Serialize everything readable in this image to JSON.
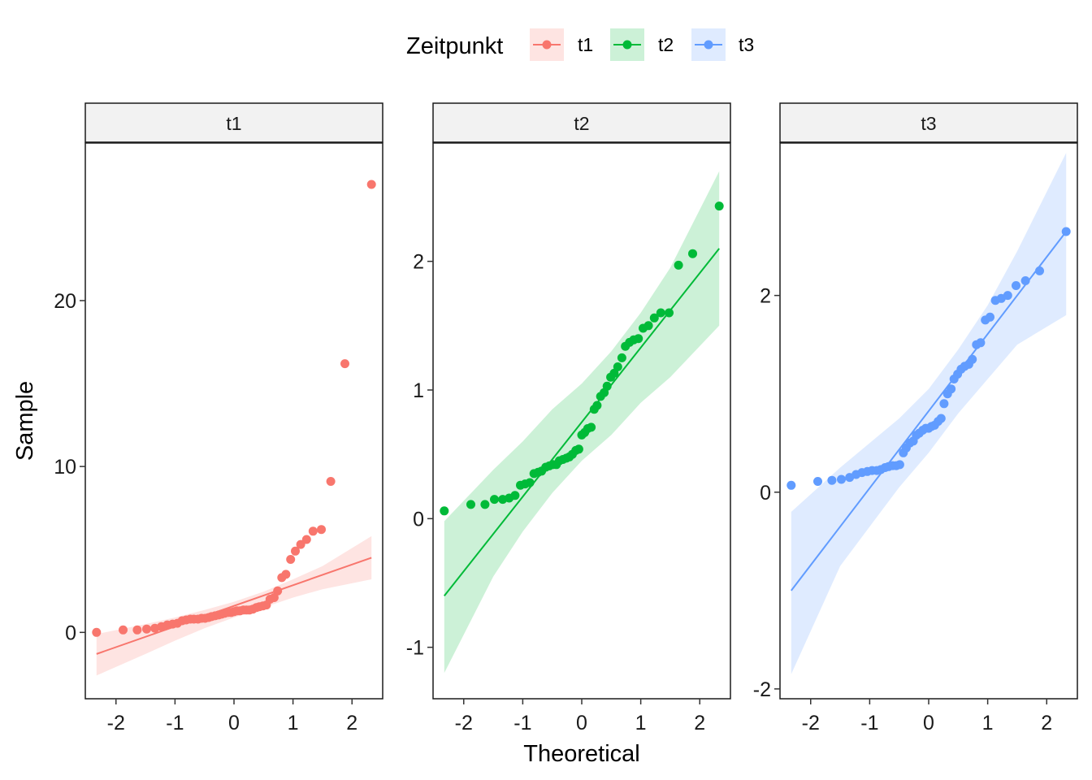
{
  "chart_data": {
    "type": "scatter",
    "subtype": "qq-plot with reference line and confidence band",
    "xlabel": "Theoretical",
    "ylabel": "Sample",
    "legend": {
      "title": "Zeitpunkt",
      "position": "top",
      "entries": [
        "t1",
        "t2",
        "t3"
      ]
    },
    "colors": {
      "t1": "#F8766D",
      "t2": "#00BA38",
      "t3": "#619CFF"
    },
    "grid": false,
    "x_ticks": [
      "-2",
      "-1",
      "0",
      "1",
      "2"
    ],
    "x_tick_values": [
      -2,
      -1,
      0,
      1,
      2
    ],
    "panels": [
      {
        "strip": "t1",
        "xlim": [
          -2.52,
          2.52
        ],
        "ylim": [
          -4.0,
          29.5
        ],
        "y_ticks": [
          "0",
          "10",
          "20"
        ],
        "y_tick_values": [
          0,
          10,
          20
        ],
        "line": {
          "x": [
            -2.33,
            2.33
          ],
          "y": [
            -1.3,
            4.5
          ]
        },
        "band": {
          "x": [
            -2.33,
            -1.5,
            -1.0,
            -0.5,
            0.0,
            0.5,
            1.0,
            1.5,
            2.33
          ],
          "lower": [
            -2.6,
            -1.3,
            -0.5,
            0.25,
            0.9,
            1.5,
            2.1,
            2.6,
            3.2
          ],
          "upper": [
            -0.1,
            0.5,
            0.9,
            1.35,
            1.85,
            2.45,
            3.2,
            4.0,
            5.8
          ]
        },
        "points": {
          "x": [
            -2.33,
            -1.88,
            -1.64,
            -1.48,
            -1.34,
            -1.23,
            -1.13,
            -1.04,
            -0.96,
            -0.88,
            -0.81,
            -0.74,
            -0.68,
            -0.61,
            -0.55,
            -0.49,
            -0.43,
            -0.38,
            -0.32,
            -0.26,
            -0.21,
            -0.16,
            -0.1,
            -0.05,
            0.0,
            0.05,
            0.1,
            0.16,
            0.21,
            0.26,
            0.32,
            0.38,
            0.43,
            0.49,
            0.55,
            0.61,
            0.68,
            0.74,
            0.81,
            0.88,
            0.96,
            1.04,
            1.13,
            1.23,
            1.34,
            1.48,
            1.64,
            1.88,
            2.33
          ],
          "y": [
            0.0,
            0.15,
            0.15,
            0.2,
            0.25,
            0.35,
            0.45,
            0.5,
            0.55,
            0.7,
            0.75,
            0.8,
            0.8,
            0.8,
            0.85,
            0.85,
            0.9,
            0.95,
            1.0,
            1.05,
            1.1,
            1.15,
            1.2,
            1.2,
            1.25,
            1.3,
            1.3,
            1.35,
            1.35,
            1.35,
            1.4,
            1.5,
            1.55,
            1.6,
            1.65,
            2.0,
            2.1,
            2.5,
            3.3,
            3.5,
            4.4,
            4.9,
            5.3,
            5.6,
            6.1,
            6.2,
            9.1,
            16.2,
            27.0
          ]
        }
      },
      {
        "strip": "t2",
        "xlim": [
          -2.52,
          2.52
        ],
        "ylim": [
          -1.4,
          2.92
        ],
        "y_ticks": [
          "-1",
          "0",
          "1",
          "2"
        ],
        "y_tick_values": [
          -1,
          0,
          1,
          2
        ],
        "line": {
          "x": [
            -2.33,
            2.33
          ],
          "y": [
            -0.6,
            2.1
          ]
        },
        "band": {
          "x": [
            -2.33,
            -1.5,
            -1.0,
            -0.5,
            0.0,
            0.5,
            1.0,
            1.5,
            2.33
          ],
          "lower": [
            -1.2,
            -0.45,
            -0.1,
            0.2,
            0.45,
            0.65,
            0.9,
            1.1,
            1.5
          ],
          "upper": [
            -0.02,
            0.38,
            0.6,
            0.85,
            1.05,
            1.3,
            1.6,
            1.95,
            2.7
          ]
        },
        "points": {
          "x": [
            -2.33,
            -1.88,
            -1.64,
            -1.48,
            -1.34,
            -1.23,
            -1.13,
            -1.04,
            -0.96,
            -0.88,
            -0.81,
            -0.74,
            -0.68,
            -0.61,
            -0.55,
            -0.49,
            -0.43,
            -0.38,
            -0.32,
            -0.26,
            -0.21,
            -0.16,
            -0.1,
            -0.05,
            0.0,
            0.05,
            0.1,
            0.16,
            0.21,
            0.26,
            0.32,
            0.38,
            0.43,
            0.49,
            0.55,
            0.61,
            0.68,
            0.74,
            0.81,
            0.88,
            0.96,
            1.04,
            1.13,
            1.23,
            1.34,
            1.48,
            1.64,
            1.88,
            2.33
          ],
          "y": [
            0.06,
            0.11,
            0.11,
            0.15,
            0.15,
            0.16,
            0.18,
            0.26,
            0.27,
            0.28,
            0.35,
            0.36,
            0.37,
            0.4,
            0.41,
            0.42,
            0.42,
            0.45,
            0.46,
            0.47,
            0.48,
            0.5,
            0.53,
            0.54,
            0.65,
            0.67,
            0.7,
            0.71,
            0.85,
            0.88,
            0.95,
            0.98,
            1.03,
            1.1,
            1.13,
            1.18,
            1.25,
            1.34,
            1.37,
            1.39,
            1.4,
            1.48,
            1.5,
            1.56,
            1.6,
            1.6,
            1.97,
            2.06,
            2.43
          ]
        }
      },
      {
        "strip": "t3",
        "xlim": [
          -2.52,
          2.52
        ],
        "ylim": [
          -2.1,
          3.55
        ],
        "y_ticks": [
          "-2",
          "0",
          "2"
        ],
        "y_tick_values": [
          -2,
          0,
          2
        ],
        "line": {
          "x": [
            -2.33,
            2.33
          ],
          "y": [
            -1.0,
            2.65
          ]
        },
        "band": {
          "x": [
            -2.33,
            -1.5,
            -1.0,
            -0.5,
            0.0,
            0.5,
            1.0,
            1.5,
            2.33
          ],
          "lower": [
            -1.85,
            -0.75,
            -0.35,
            0.05,
            0.4,
            0.8,
            1.15,
            1.5,
            1.8
          ],
          "upper": [
            -0.2,
            0.25,
            0.5,
            0.75,
            1.05,
            1.45,
            1.9,
            2.45,
            3.45
          ]
        },
        "points": {
          "x": [
            -2.33,
            -1.88,
            -1.64,
            -1.48,
            -1.34,
            -1.23,
            -1.13,
            -1.04,
            -0.96,
            -0.88,
            -0.81,
            -0.74,
            -0.68,
            -0.61,
            -0.55,
            -0.49,
            -0.43,
            -0.38,
            -0.32,
            -0.26,
            -0.21,
            -0.16,
            -0.1,
            -0.05,
            0.0,
            0.05,
            0.1,
            0.16,
            0.21,
            0.26,
            0.32,
            0.38,
            0.43,
            0.49,
            0.55,
            0.61,
            0.68,
            0.74,
            0.81,
            0.88,
            0.96,
            1.04,
            1.13,
            1.23,
            1.34,
            1.48,
            1.64,
            1.88,
            2.33
          ],
          "y": [
            0.07,
            0.11,
            0.12,
            0.13,
            0.15,
            0.18,
            0.2,
            0.21,
            0.22,
            0.22,
            0.23,
            0.25,
            0.26,
            0.27,
            0.27,
            0.28,
            0.4,
            0.45,
            0.5,
            0.52,
            0.58,
            0.6,
            0.63,
            0.65,
            0.65,
            0.67,
            0.68,
            0.72,
            0.75,
            0.9,
            1.0,
            1.05,
            1.15,
            1.2,
            1.25,
            1.28,
            1.3,
            1.35,
            1.5,
            1.52,
            1.75,
            1.78,
            1.95,
            1.97,
            2.0,
            2.1,
            2.15,
            2.25,
            2.65
          ]
        }
      }
    ]
  }
}
